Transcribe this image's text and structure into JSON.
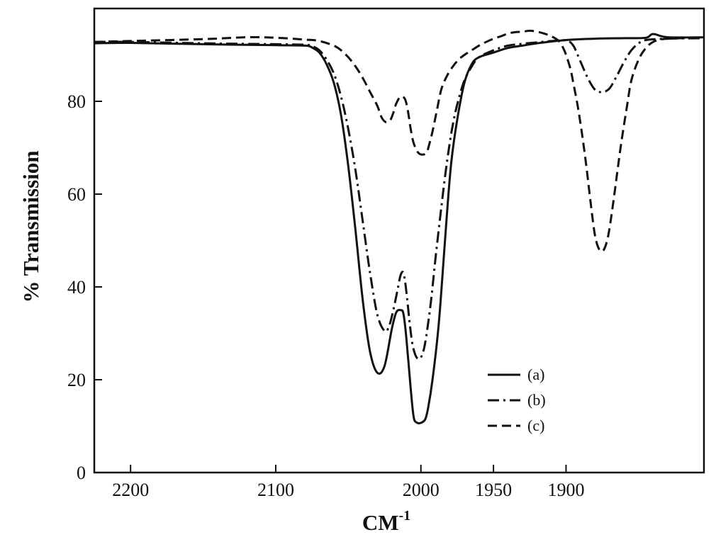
{
  "chart_data": {
    "type": "line",
    "xlabel": "CM",
    "xlabel_superscript": "-1",
    "ylabel": "% Transmission",
    "xlim": [
      2225,
      1805
    ],
    "ylim": [
      0,
      100
    ],
    "x_reversed": true,
    "grid": false,
    "legend_position": "lower-right",
    "xticks": [
      2200,
      2100,
      2000,
      1950,
      1900
    ],
    "xtick_labels": [
      "2200",
      "2100",
      "2000",
      "1950",
      "1900"
    ],
    "yticks": [
      0,
      20,
      40,
      60,
      80
    ],
    "ytick_labels": [
      "0",
      "20",
      "40",
      "60",
      "80"
    ],
    "series": [
      {
        "name": "(a)",
        "style": "solid",
        "x": [
          2225,
          2200,
          2150,
          2100,
          2080,
          2075,
          2070,
          2065,
          2060,
          2055,
          2050,
          2045,
          2040,
          2035,
          2030,
          2025,
          2020,
          2017,
          2014,
          2012,
          2010,
          2007,
          2005,
          2003,
          2000,
          1997,
          1995,
          1992,
          1988,
          1985,
          1982,
          1979,
          1975,
          1970,
          1965,
          1960,
          1950,
          1940,
          1930,
          1920,
          1900,
          1880,
          1860,
          1845,
          1840,
          1830,
          1805
        ],
        "y": [
          92.5,
          92.6,
          92.3,
          92.1,
          92.0,
          91.6,
          90.5,
          88.0,
          84.0,
          77.0,
          66.0,
          52.0,
          37.0,
          26.0,
          21.5,
          23.0,
          31.0,
          34.5,
          35.0,
          34.2,
          29.0,
          18.0,
          12.0,
          10.8,
          10.7,
          11.5,
          14.0,
          20.0,
          31.0,
          43.0,
          56.0,
          67.0,
          76.0,
          84.0,
          88.0,
          89.5,
          90.5,
          91.5,
          92.0,
          92.5,
          93.2,
          93.5,
          93.6,
          93.7,
          94.5,
          93.8,
          93.8
        ]
      },
      {
        "name": "(b)",
        "style": "dashdot",
        "x": [
          2225,
          2200,
          2150,
          2100,
          2080,
          2075,
          2070,
          2065,
          2060,
          2055,
          2050,
          2045,
          2040,
          2035,
          2030,
          2025,
          2022,
          2019,
          2016,
          2014,
          2012,
          2010,
          2008,
          2006,
          2004,
          2002,
          2000,
          1998,
          1996,
          1993,
          1990,
          1986,
          1982,
          1978,
          1974,
          1970,
          1965,
          1960,
          1950,
          1940,
          1930,
          1920,
          1910,
          1900,
          1895,
          1890,
          1885,
          1880,
          1875,
          1870,
          1865,
          1860,
          1855,
          1850,
          1845,
          1830,
          1805
        ],
        "y": [
          92.8,
          92.8,
          92.5,
          92.3,
          92.2,
          91.9,
          91.0,
          89.0,
          86.0,
          81.0,
          74.0,
          65.0,
          54.0,
          43.0,
          34.0,
          30.5,
          31.5,
          35.0,
          39.5,
          42.5,
          43.0,
          39.0,
          33.0,
          28.0,
          25.5,
          24.5,
          24.8,
          26.5,
          30.0,
          37.0,
          46.0,
          57.0,
          67.0,
          75.0,
          80.5,
          84.5,
          87.5,
          89.5,
          91.0,
          92.0,
          92.4,
          92.7,
          93.0,
          93.1,
          92.0,
          88.5,
          85.0,
          82.5,
          82.0,
          82.8,
          85.5,
          88.5,
          91.0,
          92.5,
          93.2,
          93.5,
          93.6
        ]
      },
      {
        "name": "(c)",
        "style": "dashed",
        "x": [
          2225,
          2200,
          2150,
          2120,
          2100,
          2080,
          2070,
          2060,
          2055,
          2050,
          2045,
          2040,
          2035,
          2030,
          2027,
          2024,
          2021,
          2019,
          2017,
          2014,
          2011,
          2009,
          2007,
          2005,
          2002,
          1999,
          1996,
          1994,
          1992,
          1989,
          1986,
          1982,
          1978,
          1974,
          1970,
          1965,
          1960,
          1955,
          1950,
          1945,
          1940,
          1935,
          1930,
          1925,
          1920,
          1915,
          1910,
          1905,
          1902,
          1900,
          1897,
          1895,
          1892,
          1889,
          1886,
          1883,
          1880,
          1877,
          1874,
          1871,
          1868,
          1865,
          1862,
          1858,
          1855,
          1850,
          1845,
          1840,
          1835,
          1830,
          1820,
          1805
        ],
        "y": [
          92.8,
          93.0,
          93.4,
          93.8,
          93.7,
          93.3,
          93.0,
          92.0,
          91.0,
          89.5,
          87.5,
          85.0,
          82.0,
          79.0,
          76.5,
          75.5,
          76.0,
          77.5,
          79.5,
          81.0,
          80.5,
          78.0,
          74.0,
          71.0,
          69.0,
          68.5,
          69.0,
          71.0,
          73.5,
          78.0,
          82.5,
          85.5,
          87.5,
          89.0,
          90.0,
          91.0,
          92.0,
          92.8,
          93.5,
          94.0,
          94.6,
          94.9,
          95.0,
          95.2,
          95.0,
          94.6,
          94.0,
          93.0,
          91.5,
          90.0,
          87.0,
          84.0,
          79.0,
          73.0,
          66.0,
          58.0,
          51.0,
          48.0,
          48.0,
          51.0,
          57.0,
          64.0,
          71.0,
          79.0,
          84.5,
          89.0,
          91.5,
          92.8,
          93.3,
          93.5,
          93.6,
          93.6
        ]
      }
    ]
  }
}
